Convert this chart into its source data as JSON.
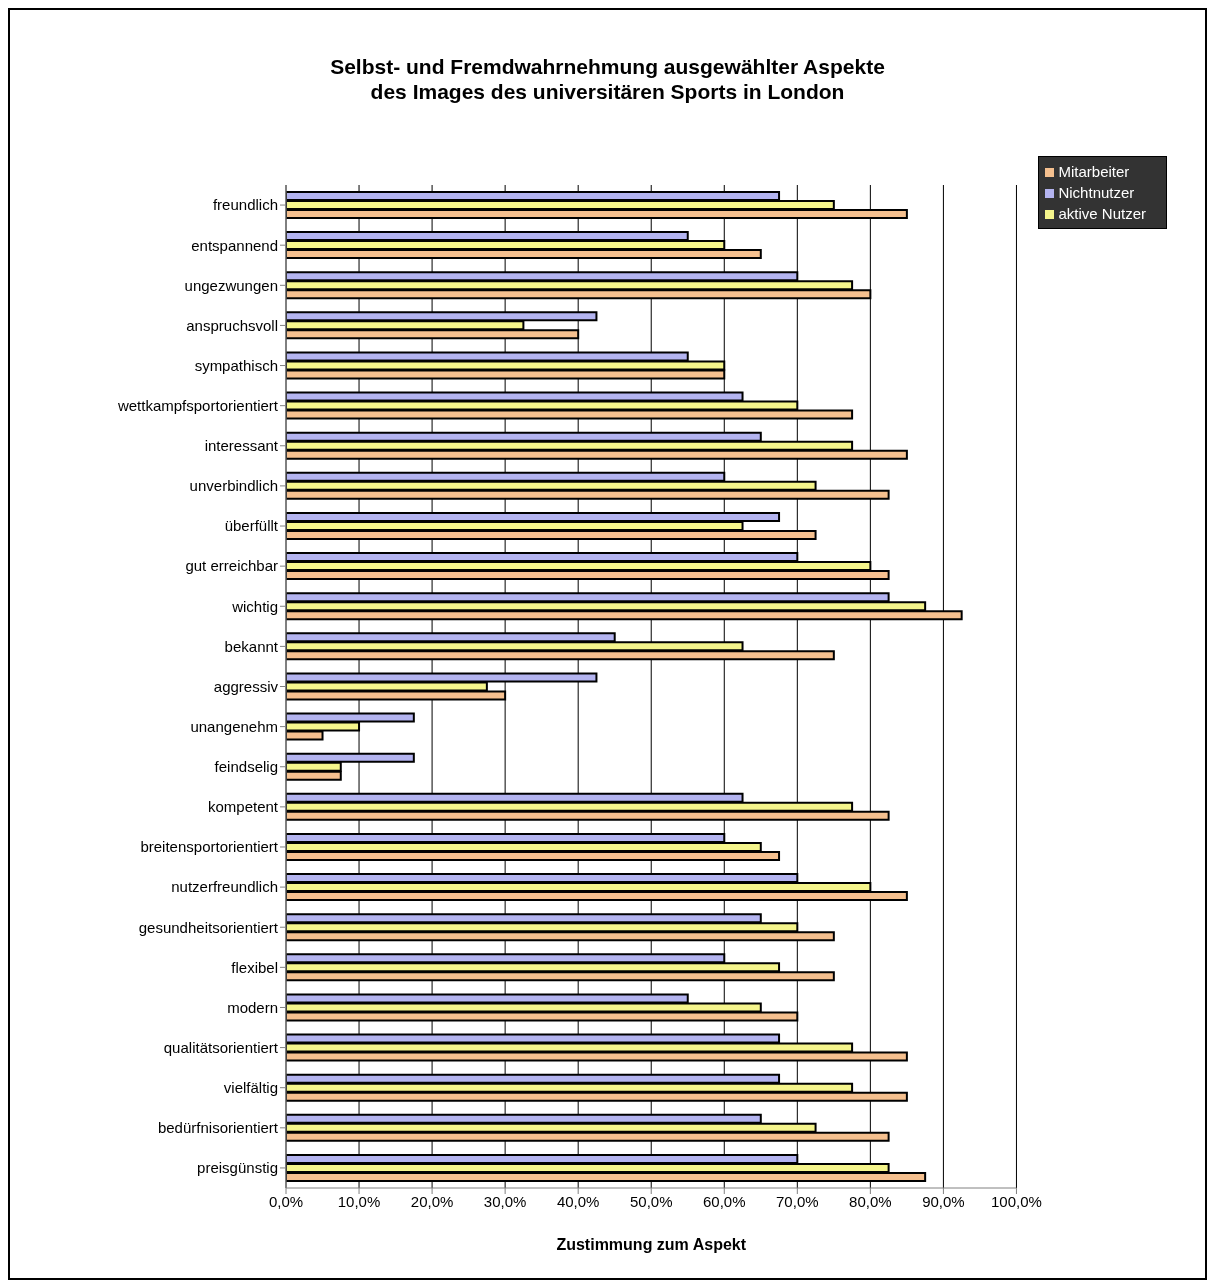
{
  "chart_data": {
    "type": "bar",
    "orientation": "horizontal",
    "title": "Selbst- und Fremdwahrnehmung ausgewählter Aspekte\ndes Images des universitären Sports in London",
    "xlabel": "Zustimmung zum Aspekt",
    "categories": [
      "freundlich",
      "entspannend",
      "ungezwungen",
      "anspruchsvoll",
      "sympathisch",
      "wettkampfsportorientiert",
      "interessant",
      "unverbindlich",
      "überfüllt",
      "gut erreichbar",
      "wichtig",
      "bekannt",
      "aggressiv",
      "unangenehm",
      "feindselig",
      "kompetent",
      "breitensportorientiert",
      "nutzerfreundlich",
      "gesundheitsorientiert",
      "flexibel",
      "modern",
      "qualitätsorientiert",
      "vielfältig",
      "bedürfnisorientiert",
      "preisgünstig"
    ],
    "series": [
      {
        "name": "Nichtnutzer",
        "color": "#b4b4f0",
        "values": [
          67.5,
          55,
          70,
          42.5,
          55,
          62.5,
          65,
          60,
          67.5,
          70,
          82.5,
          45,
          42.5,
          17.5,
          17.5,
          62.5,
          60,
          70,
          65,
          60,
          55,
          67.5,
          67.5,
          65,
          70
        ]
      },
      {
        "name": "aktive Nutzer",
        "color": "#f5f58c",
        "values": [
          75,
          60,
          77.5,
          32.5,
          60,
          70,
          77.5,
          72.5,
          62.5,
          80,
          87.5,
          62.5,
          27.5,
          10,
          7.5,
          77.5,
          65,
          80,
          70,
          67.5,
          65,
          77.5,
          77.5,
          72.5,
          82.5
        ]
      },
      {
        "name": "Mitarbeiter",
        "color": "#f5c08f",
        "values": [
          85,
          65,
          80,
          40,
          60,
          77.5,
          85,
          82.5,
          72.5,
          82.5,
          92.5,
          75,
          30,
          5,
          7.5,
          82.5,
          67.5,
          85,
          75,
          75,
          70,
          85,
          85,
          82.5,
          87.5
        ]
      }
    ],
    "xlim": [
      0,
      100
    ],
    "xticks": [
      {
        "value": 0,
        "label": "0,0%"
      },
      {
        "value": 10,
        "label": "10,0%"
      },
      {
        "value": 20,
        "label": "20,0%"
      },
      {
        "value": 30,
        "label": "30,0%"
      },
      {
        "value": 40,
        "label": "40,0%"
      },
      {
        "value": 50,
        "label": "50,0%"
      },
      {
        "value": 60,
        "label": "60,0%"
      },
      {
        "value": 70,
        "label": "70,0%"
      },
      {
        "value": 80,
        "label": "80,0%"
      },
      {
        "value": 90,
        "label": "90,0%"
      },
      {
        "value": 100,
        "label": "100,0%"
      }
    ],
    "grid": "x",
    "legend": "top right"
  }
}
